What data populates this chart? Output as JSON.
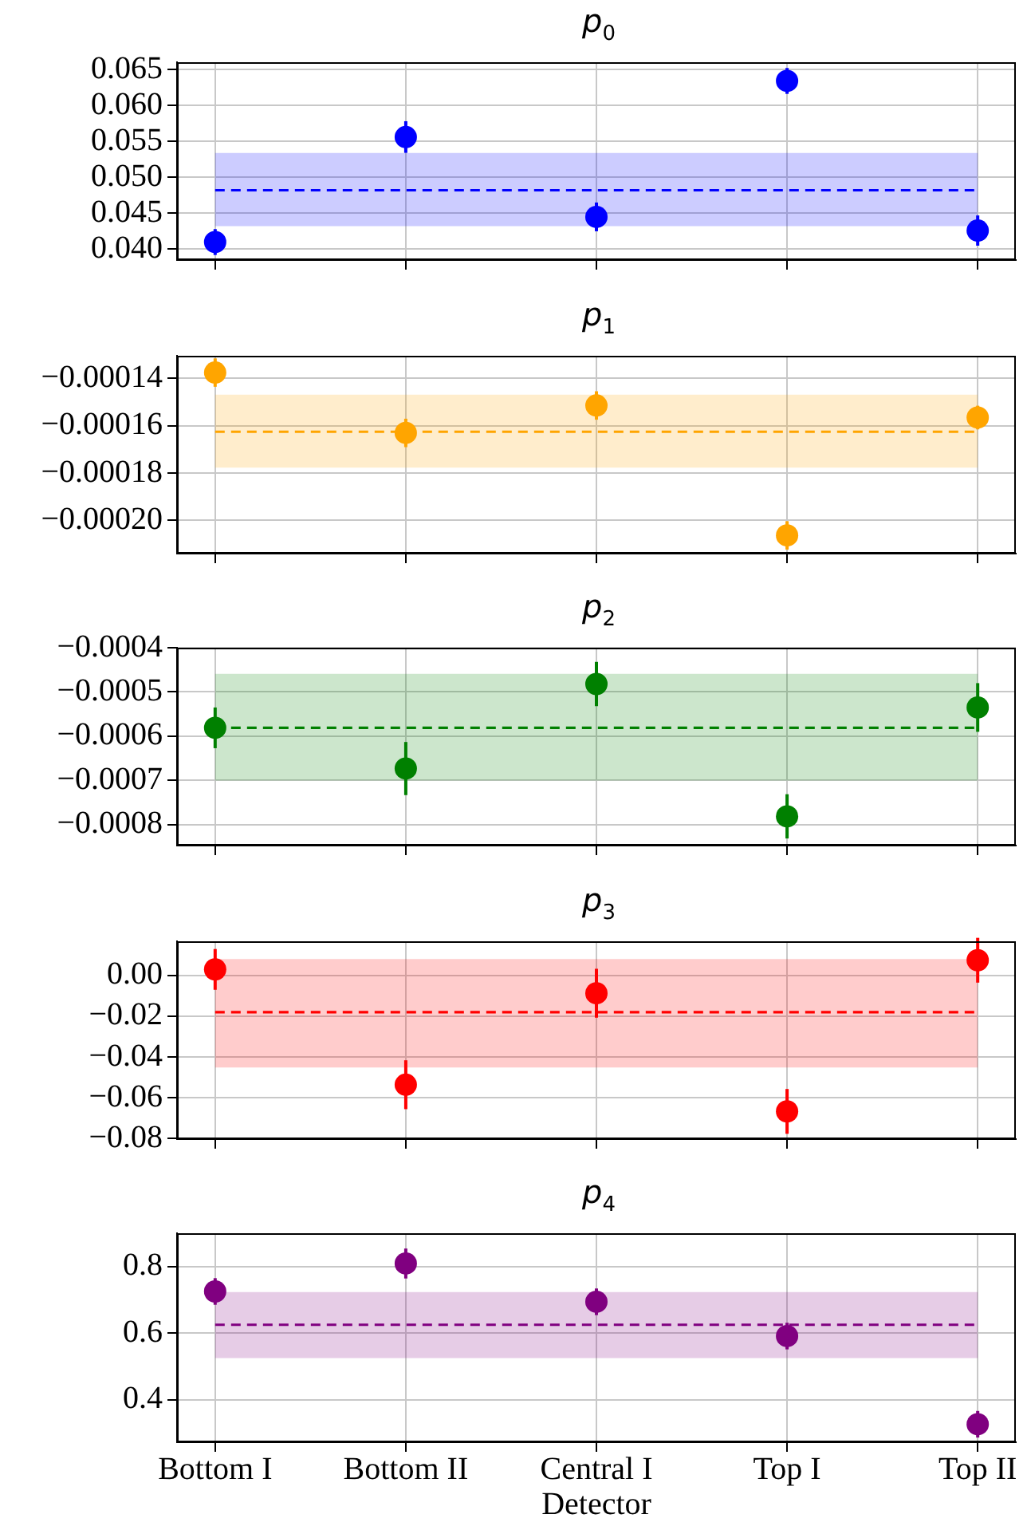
{
  "chart_data": [
    {
      "type": "scatter",
      "title": "p$_{0}$",
      "categories": [
        null,
        null,
        null,
        null,
        null
      ],
      "series": [
        {
          "color": "#0000ff",
          "values": [
            0.041,
            0.0556,
            0.0445,
            0.0634,
            0.0426
          ],
          "errors": [
            0.0018,
            0.0022,
            0.002,
            0.0018,
            0.0021
          ]
        }
      ],
      "ref_lines": [
        {
          "axis": "y",
          "value": 0.0482,
          "line_style": "dashed"
        }
      ],
      "bands": [
        {
          "axis": "y",
          "from": 0.0432,
          "to": 0.0534
        }
      ],
      "ylim": [
        0.0385,
        0.066
      ],
      "yticks": [
        {
          "value": 0.04,
          "label": "0.040"
        },
        {
          "value": 0.045,
          "label": "0.045"
        },
        {
          "value": 0.05,
          "label": "0.050"
        },
        {
          "value": 0.055,
          "label": "0.055"
        },
        {
          "value": 0.06,
          "label": "0.060"
        },
        {
          "value": 0.065,
          "label": "0.065"
        }
      ],
      "grid": true,
      "marker": "circle",
      "tick_labels": "y"
    },
    {
      "type": "scatter",
      "title": "p$_{1}$",
      "categories": [
        null,
        null,
        null,
        null,
        null
      ],
      "series": [
        {
          "color": "#ffa500",
          "values": [
            -0.0001375,
            -0.000163,
            -0.0001514,
            -0.0002063,
            -0.0001565
          ],
          "errors": [
            6e-06,
            6e-06,
            6e-06,
            6e-06,
            5e-06
          ]
        }
      ],
      "ref_lines": [
        {
          "axis": "y",
          "value": -0.0001625,
          "line_style": "dashed"
        }
      ],
      "bands": [
        {
          "axis": "y",
          "from": -0.0001777,
          "to": -0.0001468
        }
      ],
      "ylim": [
        -0.000214,
        -0.0001304
      ],
      "yticks": [
        {
          "value": -0.0002,
          "label": "−0.00020"
        },
        {
          "value": -0.00018,
          "label": "−0.00018"
        },
        {
          "value": -0.00016,
          "label": "−0.00016"
        },
        {
          "value": -0.00014,
          "label": "−0.00014"
        }
      ],
      "grid": true,
      "marker": "circle",
      "tick_labels": "y"
    },
    {
      "type": "scatter",
      "title": "p$_{2}$",
      "categories": [
        null,
        null,
        null,
        null,
        null
      ],
      "series": [
        {
          "color": "#008000",
          "values": [
            -0.000581,
            -0.000673,
            -0.000482,
            -0.000781,
            -0.000535
          ],
          "errors": [
            4.6e-05,
            6e-05,
            5e-05,
            5e-05,
            5.5e-05
          ]
        }
      ],
      "ref_lines": [
        {
          "axis": "y",
          "value": -0.000581,
          "line_style": "dashed"
        }
      ],
      "bands": [
        {
          "axis": "y",
          "from": -0.0007,
          "to": -0.000459
        }
      ],
      "ylim": [
        -0.000847,
        -0.0004
      ],
      "yticks": [
        {
          "value": -0.0008,
          "label": "−0.0008"
        },
        {
          "value": -0.0007,
          "label": "−0.0007"
        },
        {
          "value": -0.0006,
          "label": "−0.0006"
        },
        {
          "value": -0.0005,
          "label": "−0.0005"
        },
        {
          "value": -0.0004,
          "label": "−0.0004"
        }
      ],
      "grid": true,
      "marker": "circle",
      "tick_labels": "y"
    },
    {
      "type": "scatter",
      "title": "p$_{3}$",
      "categories": [
        null,
        null,
        null,
        null,
        null
      ],
      "series": [
        {
          "color": "#ff0000",
          "values": [
            0.003,
            -0.0536,
            -0.0087,
            -0.0667,
            0.0075
          ],
          "errors": [
            0.01,
            0.012,
            0.012,
            0.011,
            0.011
          ]
        }
      ],
      "ref_lines": [
        {
          "axis": "y",
          "value": -0.018,
          "line_style": "dashed"
        }
      ],
      "bands": [
        {
          "axis": "y",
          "from": -0.0452,
          "to": 0.0081
        }
      ],
      "ylim": [
        -0.0803,
        0.0168
      ],
      "yticks": [
        {
          "value": -0.08,
          "label": "−0.08"
        },
        {
          "value": -0.06,
          "label": "−0.06"
        },
        {
          "value": -0.04,
          "label": "−0.04"
        },
        {
          "value": -0.02,
          "label": "−0.02"
        },
        {
          "value": 0,
          "label": "0.00"
        }
      ],
      "grid": true,
      "marker": "circle",
      "tick_labels": "y"
    },
    {
      "type": "scatter",
      "title": "p$_{4}$",
      "xlabel": "Detector",
      "categories": [
        "Bottom I",
        "Bottom II",
        "Central I",
        "Top I",
        "Top II"
      ],
      "series": [
        {
          "color": "#800080",
          "values": [
            0.725,
            0.809,
            0.694,
            0.591,
            0.326
          ],
          "errors": [
            0.04,
            0.045,
            0.04,
            0.04,
            0.04
          ]
        }
      ],
      "ref_lines": [
        {
          "axis": "y",
          "value": 0.625,
          "line_style": "dashed"
        }
      ],
      "bands": [
        {
          "axis": "y",
          "from": 0.525,
          "to": 0.723
        }
      ],
      "ylim": [
        0.272,
        0.9
      ],
      "yticks": [
        {
          "value": 0.4,
          "label": "0.4"
        },
        {
          "value": 0.6,
          "label": "0.6"
        },
        {
          "value": 0.8,
          "label": "0.8"
        }
      ],
      "grid": true,
      "marker": "circle"
    }
  ]
}
